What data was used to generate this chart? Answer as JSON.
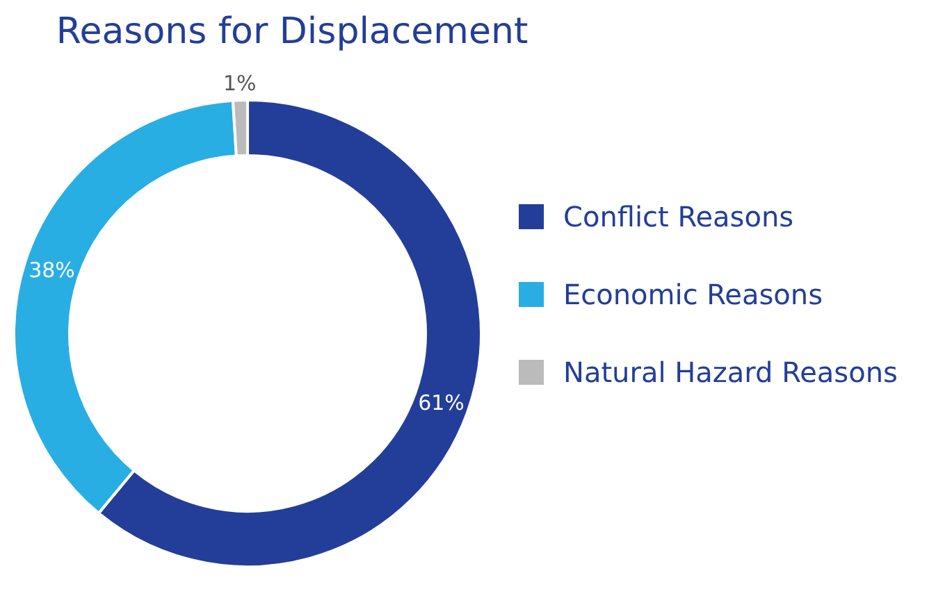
{
  "chart_data": {
    "type": "donut",
    "title": "Reasons for Displacement",
    "categories": [
      "Conflict Reasons",
      "Economic Reasons",
      "Natural Hazard Reasons"
    ],
    "values": [
      61,
      38,
      1
    ],
    "colors": [
      "#233e99",
      "#29aee3",
      "#bbbbbb"
    ],
    "value_labels": [
      "61%",
      "38%",
      "1%"
    ],
    "legend": "right"
  }
}
